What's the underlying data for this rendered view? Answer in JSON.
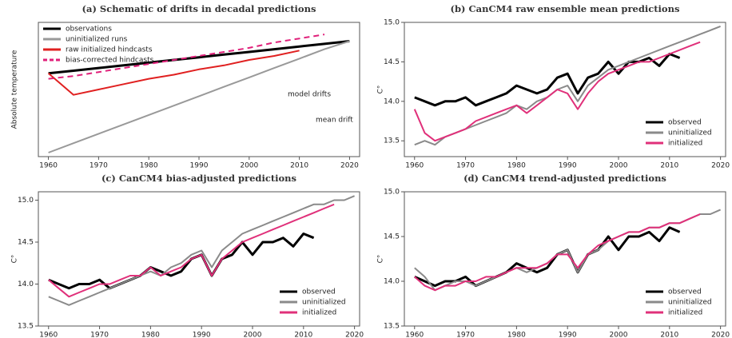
{
  "chart_data": [
    {
      "type": "line",
      "title": "(a) Schematic of drifts in decadal predictions",
      "ylabel": "Absolute temperature",
      "x": [
        1960,
        1965,
        1970,
        1975,
        1980,
        1985,
        1990,
        1995,
        2000,
        2005,
        2010,
        2015,
        2020
      ],
      "xlim": [
        1958,
        2022
      ],
      "xticks": [
        1960,
        1970,
        1980,
        1990,
        2000,
        2010,
        2020
      ],
      "ylim": [
        0,
        10
      ],
      "legend": "upper left",
      "annotations": [
        "model drifts",
        "mean drift"
      ],
      "series": [
        {
          "name": "observations",
          "color": "#000000",
          "values": [
            6.2,
            6.4,
            6.6,
            6.8,
            7.0,
            7.2,
            7.4,
            7.6,
            7.8,
            8.0,
            8.2,
            8.4,
            8.6
          ]
        },
        {
          "name": "uninitialized runs",
          "color": "#999999",
          "values": [
            0.3,
            1.0,
            1.7,
            2.4,
            3.1,
            3.8,
            4.5,
            5.2,
            5.9,
            6.6,
            7.3,
            8.0,
            8.6
          ]
        },
        {
          "name": "raw initialized hindcasts",
          "color": "#e02020",
          "values": [
            6.2,
            4.6,
            5.0,
            5.4,
            5.8,
            6.1,
            6.5,
            6.8,
            7.2,
            7.5,
            7.9,
            null,
            null
          ]
        },
        {
          "name": "bias-corrected hindcasts",
          "color": "#e0207a",
          "dash": true,
          "values": [
            5.8,
            6.0,
            6.3,
            6.6,
            6.9,
            7.2,
            7.5,
            7.8,
            8.1,
            8.5,
            8.8,
            9.1,
            null
          ]
        }
      ]
    },
    {
      "type": "line",
      "title": "(b) CanCM4 raw ensemble mean predictions",
      "ylabel": "C°",
      "x": [
        1960,
        1962,
        1964,
        1966,
        1968,
        1970,
        1972,
        1974,
        1976,
        1978,
        1980,
        1982,
        1984,
        1986,
        1988,
        1990,
        1992,
        1994,
        1996,
        1998,
        2000,
        2002,
        2004,
        2006,
        2008,
        2010,
        2012,
        2014,
        2016,
        2018,
        2020
      ],
      "xlim": [
        1958,
        2021
      ],
      "xticks": [
        1960,
        1970,
        1980,
        1990,
        2000,
        2010,
        2020
      ],
      "ylim": [
        13.3,
        15.0
      ],
      "yticks": [
        13.5,
        {
          "value": 14,
          "label": "14.0"
        },
        14.5,
        {
          "value": 15,
          "label": "15.0"
        }
      ],
      "legend": "lower right",
      "series": [
        {
          "name": "observed",
          "color": "#000000",
          "values": [
            14.05,
            14.0,
            13.95,
            14.0,
            14.0,
            14.05,
            13.95,
            14.0,
            14.05,
            14.1,
            14.2,
            14.15,
            14.1,
            14.15,
            14.3,
            14.35,
            14.1,
            14.3,
            14.35,
            14.5,
            14.35,
            14.5,
            14.5,
            14.55,
            14.45,
            14.6,
            14.55,
            null,
            null,
            null,
            null
          ]
        },
        {
          "name": "uninitialized",
          "color": "#8a8a8a",
          "values": [
            13.45,
            13.5,
            13.45,
            13.55,
            13.6,
            13.65,
            13.7,
            13.75,
            13.8,
            13.85,
            13.95,
            13.9,
            14.0,
            14.05,
            14.15,
            14.2,
            14.0,
            14.2,
            14.3,
            14.4,
            14.45,
            14.5,
            14.55,
            14.6,
            14.65,
            14.7,
            14.75,
            14.8,
            14.85,
            14.9,
            14.95
          ]
        },
        {
          "name": "initialized",
          "color": "#e0307a",
          "values": [
            13.9,
            13.6,
            13.5,
            13.55,
            13.6,
            13.65,
            13.75,
            13.8,
            13.85,
            13.9,
            13.95,
            13.85,
            13.95,
            14.05,
            14.15,
            14.1,
            13.9,
            14.1,
            14.25,
            14.35,
            14.4,
            14.45,
            14.5,
            14.5,
            14.55,
            14.6,
            14.65,
            14.7,
            14.75,
            null,
            null
          ]
        }
      ]
    },
    {
      "type": "line",
      "title": "(c) CanCM4 bias-adjusted predictions",
      "ylabel": "C°",
      "x": [
        1960,
        1962,
        1964,
        1966,
        1968,
        1970,
        1972,
        1974,
        1976,
        1978,
        1980,
        1982,
        1984,
        1986,
        1988,
        1990,
        1992,
        1994,
        1996,
        1998,
        2000,
        2002,
        2004,
        2006,
        2008,
        2010,
        2012,
        2014,
        2016,
        2018,
        2020
      ],
      "xlim": [
        1958,
        2021
      ],
      "xticks": [
        1960,
        1970,
        1980,
        1990,
        2000,
        2010,
        2020
      ],
      "ylim": [
        13.5,
        15.1
      ],
      "yticks": [
        13.5,
        {
          "value": 14,
          "label": "14.0"
        },
        14.5,
        {
          "value": 15,
          "label": "15.0"
        }
      ],
      "legend": "lower right",
      "series": [
        {
          "name": "observed",
          "color": "#000000",
          "values": [
            14.05,
            14.0,
            13.95,
            14.0,
            14.0,
            14.05,
            13.95,
            14.0,
            14.05,
            14.1,
            14.2,
            14.15,
            14.1,
            14.15,
            14.3,
            14.35,
            14.1,
            14.3,
            14.35,
            14.5,
            14.35,
            14.5,
            14.5,
            14.55,
            14.45,
            14.6,
            14.55,
            null,
            null,
            null,
            null
          ]
        },
        {
          "name": "uninitialized",
          "color": "#8a8a8a",
          "values": [
            13.85,
            13.8,
            13.75,
            13.8,
            13.85,
            13.9,
            13.95,
            14.0,
            14.05,
            14.1,
            14.15,
            14.1,
            14.2,
            14.25,
            14.35,
            14.4,
            14.2,
            14.4,
            14.5,
            14.6,
            14.65,
            14.7,
            14.75,
            14.8,
            14.85,
            14.9,
            14.95,
            14.95,
            15.0,
            15.0,
            15.05
          ]
        },
        {
          "name": "initialized",
          "color": "#e0307a",
          "values": [
            14.05,
            13.95,
            13.85,
            13.9,
            13.95,
            14.0,
            14.0,
            14.05,
            14.1,
            14.1,
            14.2,
            14.1,
            14.15,
            14.2,
            14.3,
            14.35,
            14.1,
            14.3,
            14.4,
            14.5,
            14.55,
            14.6,
            14.65,
            14.7,
            14.75,
            14.8,
            14.85,
            14.9,
            14.95,
            null,
            null
          ]
        }
      ]
    },
    {
      "type": "line",
      "title": "(d) CanCM4 trend-adjusted predictions",
      "ylabel": "C°",
      "x": [
        1960,
        1962,
        1964,
        1966,
        1968,
        1970,
        1972,
        1974,
        1976,
        1978,
        1980,
        1982,
        1984,
        1986,
        1988,
        1990,
        1992,
        1994,
        1996,
        1998,
        2000,
        2002,
        2004,
        2006,
        2008,
        2010,
        2012,
        2014,
        2016,
        2018,
        2020
      ],
      "xlim": [
        1958,
        2021
      ],
      "xticks": [
        1960,
        1970,
        1980,
        1990,
        2000,
        2010,
        2020
      ],
      "ylim": [
        13.5,
        15.0
      ],
      "yticks": [
        13.5,
        {
          "value": 14,
          "label": "14.0"
        },
        14.5,
        {
          "value": 15,
          "label": "15.0"
        }
      ],
      "legend": "lower right",
      "series": [
        {
          "name": "observed",
          "color": "#000000",
          "values": [
            14.05,
            14.0,
            13.95,
            14.0,
            14.0,
            14.05,
            13.95,
            14.0,
            14.05,
            14.1,
            14.2,
            14.15,
            14.1,
            14.15,
            14.3,
            14.35,
            14.1,
            14.3,
            14.35,
            14.5,
            14.35,
            14.5,
            14.5,
            14.55,
            14.45,
            14.6,
            14.55,
            null,
            null,
            null,
            null
          ]
        },
        {
          "name": "uninitialized",
          "color": "#8a8a8a",
          "values": [
            14.15,
            14.05,
            13.9,
            13.95,
            14.0,
            14.0,
            13.95,
            14.0,
            14.05,
            14.1,
            14.15,
            14.1,
            14.15,
            14.2,
            14.3,
            14.35,
            14.1,
            14.3,
            14.35,
            14.45,
            14.5,
            14.55,
            14.55,
            14.6,
            14.6,
            14.65,
            14.65,
            14.7,
            14.75,
            14.75,
            14.8
          ]
        },
        {
          "name": "initialized",
          "color": "#e0307a",
          "values": [
            14.05,
            13.95,
            13.9,
            13.95,
            13.95,
            14.0,
            14.0,
            14.05,
            14.05,
            14.1,
            14.15,
            14.15,
            14.15,
            14.2,
            14.3,
            14.3,
            14.15,
            14.3,
            14.4,
            14.45,
            14.5,
            14.55,
            14.55,
            14.6,
            14.6,
            14.65,
            14.65,
            14.7,
            14.75,
            null,
            null
          ]
        }
      ]
    }
  ]
}
